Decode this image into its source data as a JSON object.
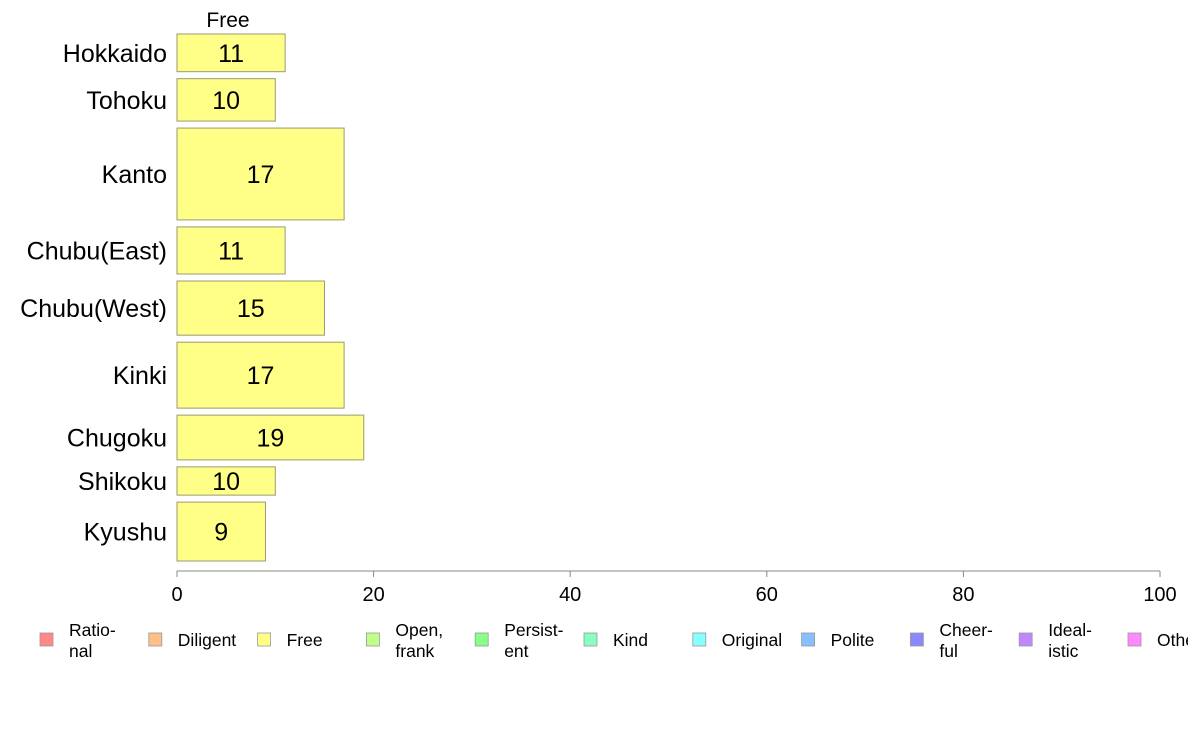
{
  "chart_data": {
    "type": "bar",
    "orientation": "horizontal",
    "stacked": true,
    "panel_title": "Free",
    "categories": [
      "Hokkaido",
      "Tohoku",
      "Kanto",
      "Chubu(East)",
      "Chubu(West)",
      "Kinki",
      "Chugoku",
      "Shikoku",
      "Kyushu"
    ],
    "category_weights": [
      0.8,
      0.9,
      1.95,
      1.0,
      1.15,
      1.4,
      0.95,
      0.6,
      1.25
    ],
    "series": [
      {
        "name": "Free",
        "color": "#ffff88",
        "values": [
          11,
          10,
          17,
          11,
          15,
          17,
          19,
          10,
          9
        ]
      }
    ],
    "xlim": [
      0,
      100
    ],
    "xticks": [
      "0",
      "20",
      "40",
      "60",
      "80",
      "100"
    ],
    "grid": false,
    "legend_position": "bottom",
    "legend": [
      {
        "lines": [
          "Ratio-",
          "nal"
        ],
        "color": "#ff8888"
      },
      {
        "lines": [
          "Diligent"
        ],
        "color": "#ffc088"
      },
      {
        "lines": [
          "Free"
        ],
        "color": "#ffff88"
      },
      {
        "lines": [
          "Open,",
          "frank"
        ],
        "color": "#c0ff88"
      },
      {
        "lines": [
          "Persist-",
          "ent"
        ],
        "color": "#88ff88"
      },
      {
        "lines": [
          "Kind"
        ],
        "color": "#88ffc0"
      },
      {
        "lines": [
          "Original"
        ],
        "color": "#88ffff"
      },
      {
        "lines": [
          "Polite"
        ],
        "color": "#88c0ff"
      },
      {
        "lines": [
          "Cheer-",
          "ful"
        ],
        "color": "#8888ff"
      },
      {
        "lines": [
          "Ideal-",
          "istic"
        ],
        "color": "#c088ff"
      },
      {
        "lines": [
          "Other"
        ],
        "color": "#ff88ff"
      }
    ]
  }
}
